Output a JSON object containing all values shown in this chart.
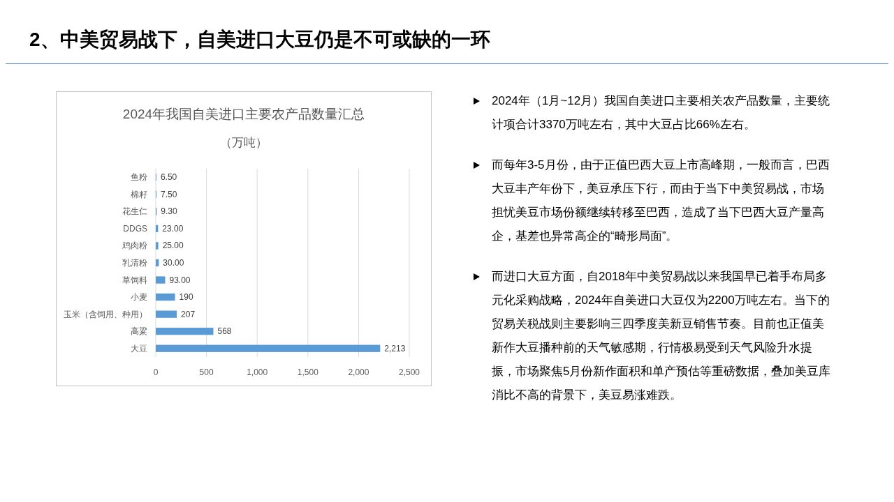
{
  "chart_data": {
    "type": "bar",
    "orientation": "horizontal",
    "title": "2024年我国自美进口主要农产品数量汇总",
    "subtitle": "（万吨）",
    "categories": [
      "鱼粉",
      "棉籽",
      "花生仁",
      "DDGS",
      "鸡肉粉",
      "乳清粉",
      "草饲料",
      "小麦",
      "玉米（含饲用、种用）",
      "高粱",
      "大豆"
    ],
    "values": [
      6.5,
      7.5,
      9.3,
      23,
      25,
      30,
      93,
      190,
      207,
      568,
      2213
    ],
    "value_labels": [
      "6.50",
      "7.50",
      "9.30",
      "23.00",
      "25.00",
      "30.00",
      "93.00",
      "190",
      "207",
      "568",
      "2,213"
    ],
    "color": "#5b9bd5",
    "xlim": [
      0,
      2500
    ],
    "xticks": [
      0,
      500,
      {
        "value": 1000,
        "label": "1,000"
      },
      {
        "value": 1500,
        "label": "1,500"
      },
      {
        "value": 2000,
        "label": "2,000"
      },
      {
        "value": 2500,
        "label": "2,500"
      }
    ],
    "grid": "x",
    "annotations": [
      "2、中美贸易战下，自美进口大豆仍是不可或缺的一环",
      "2024年（1月~12月）我国自美进口主要相关农产品数量，主要统计项合计3370万吨左右，其中大豆占比66%左右。",
      "而每年3-5月份，由于正值巴西大豆上市高峰期，一般而言，巴西大豆丰产年份下，美豆承压下行，而由于当下中美贸易战，市场担忧美豆市场份额继续转移至巴西，造成了当下巴西大豆产量高企，基差也异常高企的“畸形局面”。",
      "而进口大豆方面，自2018年中美贸易战以来我国早已着手布局多元化采购战略，2024年自美进口大豆仅为2200万吨左右。当下的贸易关税战则主要影响三四季度美新豆销售节奏。目前也正值美新作大豆播种前的天气敏感期，行情极易受到天气风险升水提振，市场聚焦5月份新作面积和单产预估等重磅数据，叠加美豆库消比不高的背景下，美豆易涨难跌。"
    ]
  }
}
